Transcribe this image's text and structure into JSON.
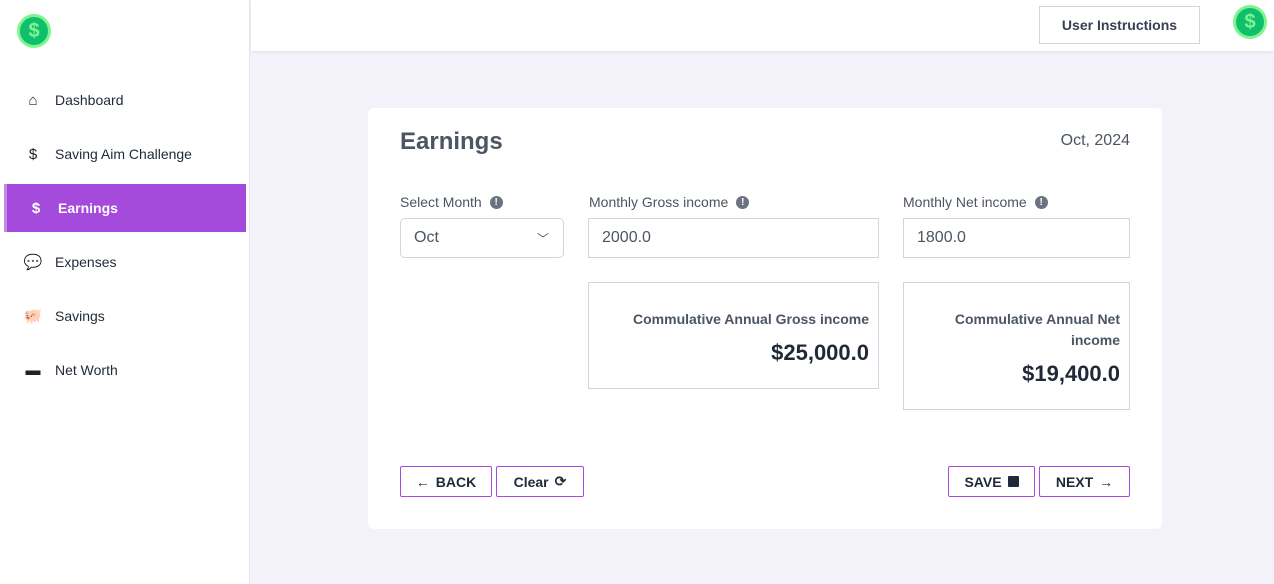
{
  "sidebar": {
    "items": [
      {
        "label": "Dashboard",
        "icon": "home-icon"
      },
      {
        "label": "Saving Aim Challenge",
        "icon": "hand-dollar-icon"
      },
      {
        "label": "Earnings",
        "icon": "hand-dollar-icon",
        "active": true
      },
      {
        "label": "Expenses",
        "icon": "comments-dollar-icon"
      },
      {
        "label": "Savings",
        "icon": "piggy-bank-icon"
      },
      {
        "label": "Net Worth",
        "icon": "money-bill-icon"
      }
    ]
  },
  "header": {
    "user_instructions": "User Instructions"
  },
  "main": {
    "title": "Earnings",
    "date": "Oct, 2024",
    "month_label": "Select Month",
    "month_value": "Oct",
    "gross_label": "Monthly Gross income",
    "gross_value": "2000.0",
    "net_label": "Monthly Net income",
    "net_value": "1800.0",
    "cum_gross_label": "Commulative Annual Gross income",
    "cum_gross_value": "$25,000.0",
    "cum_net_label": "Commulative Annual Net income",
    "cum_net_value": "$19,400.0",
    "back": "BACK",
    "clear": "Clear",
    "save": "SAVE",
    "next": "NEXT"
  },
  "colors": {
    "accent": "#a44bdc",
    "logo": "#0fbf6c"
  }
}
